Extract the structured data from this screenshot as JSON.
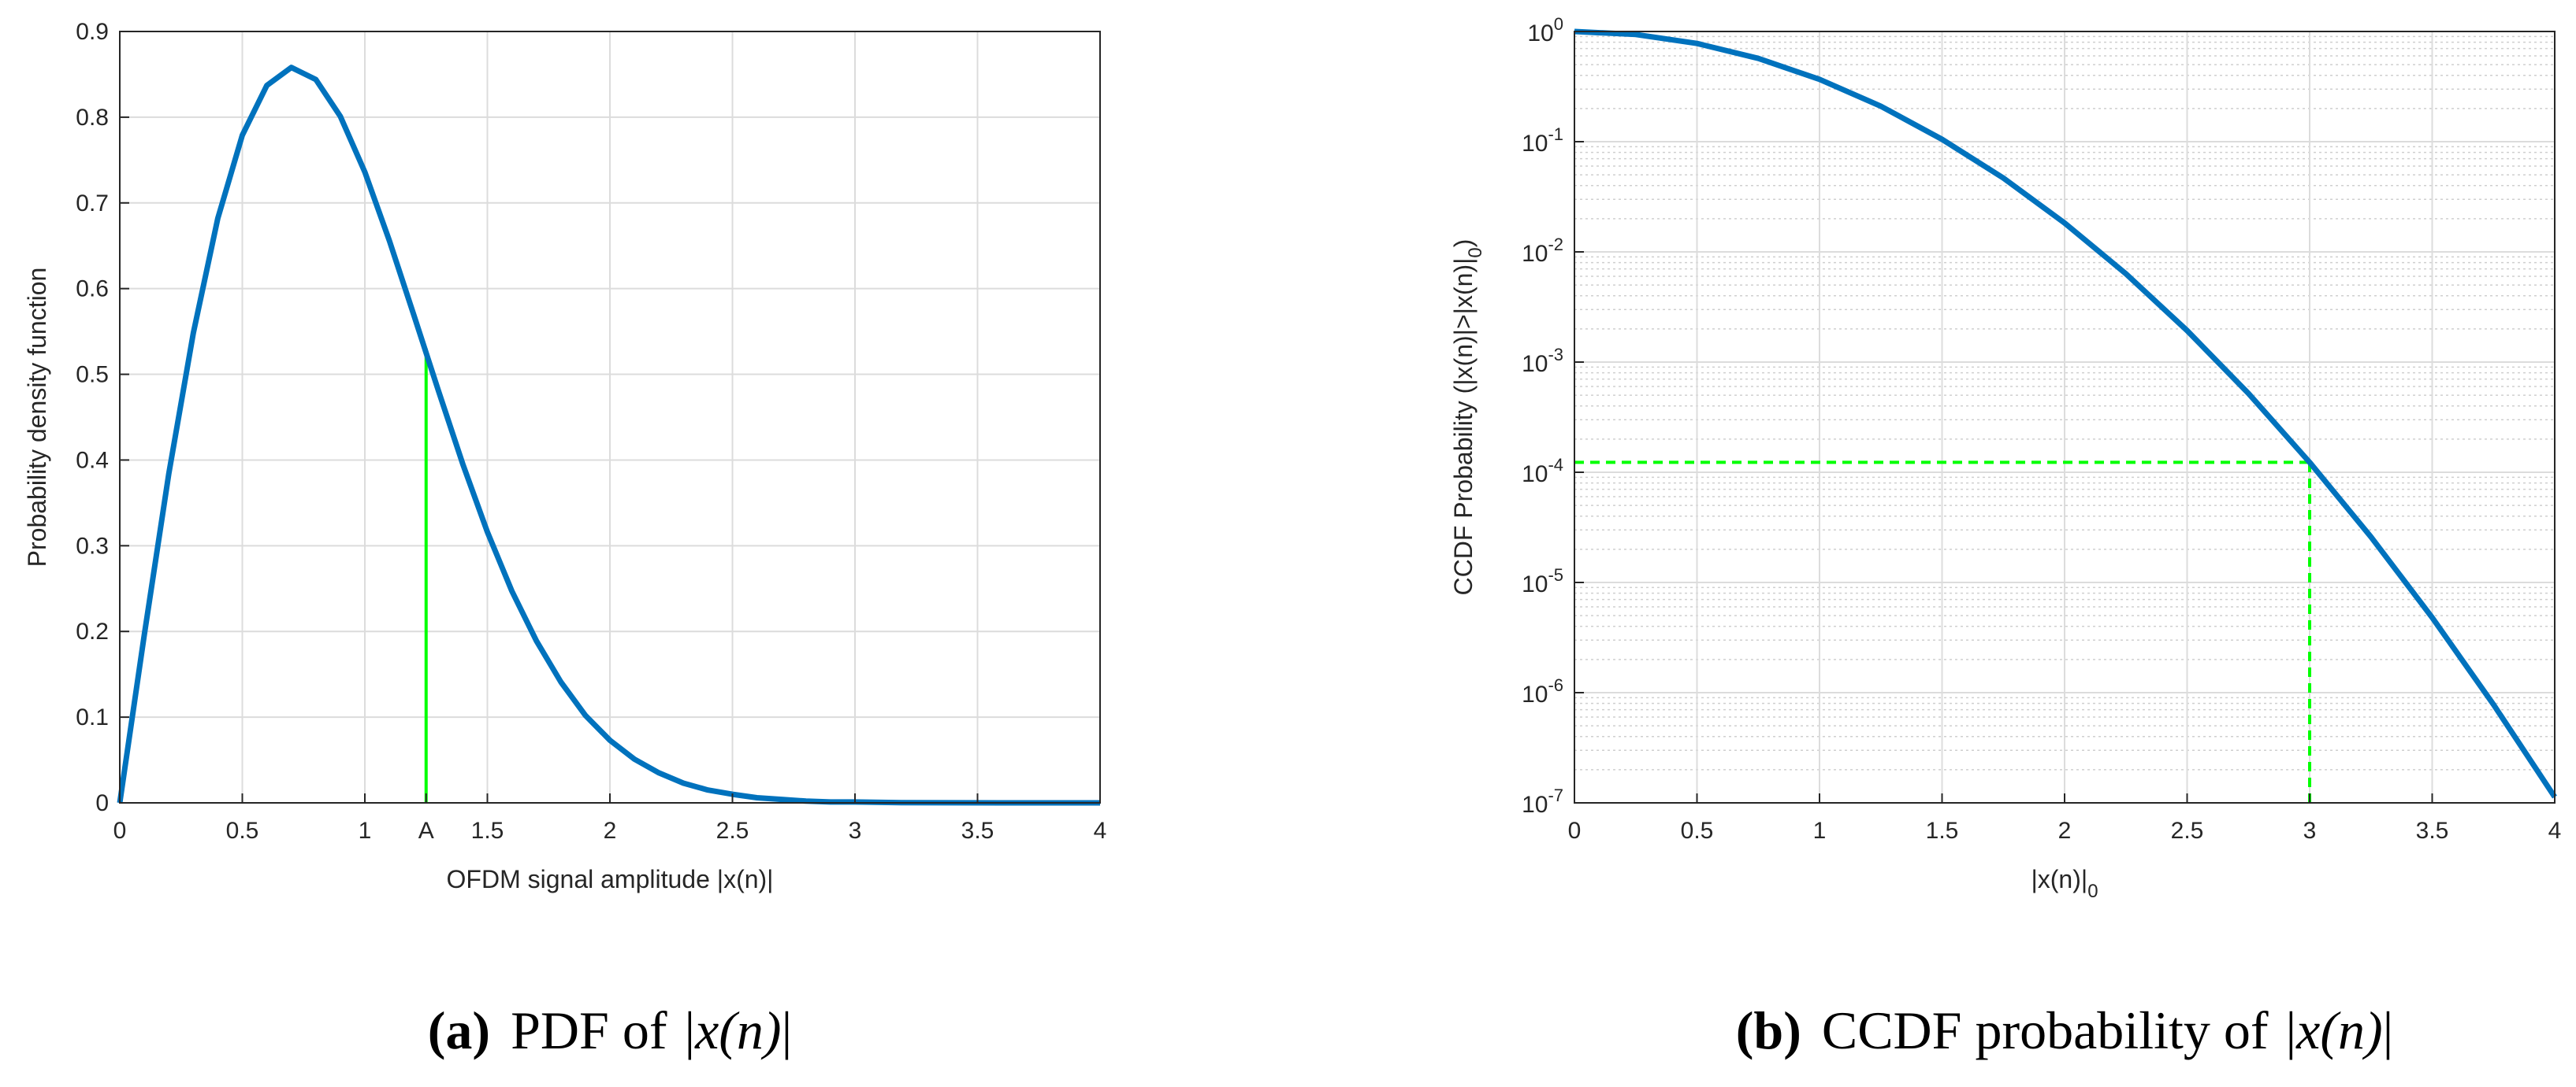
{
  "colors": {
    "curve": "#0072BD",
    "marker": "#00FF00",
    "grid": "#DCDCDC",
    "minor_grid": "#CFCFCF",
    "axis": "#262626"
  },
  "captions": {
    "a": {
      "tag": "(a)",
      "text": "PDF of",
      "math_left": "|",
      "math": "x(n)",
      "math_right": "|"
    },
    "b": {
      "tag": "(b)",
      "text": "CCDF probability of",
      "math_left": "|",
      "math": "x(n)",
      "math_right": "|"
    }
  },
  "chart_data": [
    {
      "type": "line",
      "title": "",
      "xlabel": "OFDM signal amplitude |x(n)|",
      "ylabel": "Probability density function",
      "xlim": [
        0,
        4
      ],
      "ylim": [
        0,
        0.9
      ],
      "xticks": [
        0,
        0.5,
        1,
        1.25,
        1.5,
        2,
        2.5,
        3,
        3.5,
        4
      ],
      "xtick_labels": [
        "0",
        "0.5",
        "1",
        "A",
        "1.5",
        "2",
        "2.5",
        "3",
        "3.5",
        "4"
      ],
      "yticks": [
        0,
        0.1,
        0.2,
        0.3,
        0.4,
        0.5,
        0.6,
        0.7,
        0.8,
        0.9
      ],
      "ytick_labels": [
        "0",
        "0.1",
        "0.2",
        "0.3",
        "0.4",
        "0.5",
        "0.6",
        "0.7",
        "0.8",
        "0.9"
      ],
      "grid": true,
      "series": [
        {
          "name": "PDF",
          "x": [
            0,
            0.1,
            0.2,
            0.3,
            0.4,
            0.5,
            0.6,
            0.7,
            0.8,
            0.9,
            1.0,
            1.1,
            1.2,
            1.3,
            1.4,
            1.5,
            1.6,
            1.7,
            1.8,
            1.9,
            2.0,
            2.1,
            2.2,
            2.3,
            2.4,
            2.5,
            2.6,
            2.7,
            2.8,
            2.9,
            3.0,
            3.2,
            3.4,
            3.6,
            3.8,
            4.0
          ],
          "y": [
            0,
            0.196,
            0.384,
            0.548,
            0.682,
            0.779,
            0.837,
            0.858,
            0.844,
            0.801,
            0.736,
            0.656,
            0.569,
            0.481,
            0.395,
            0.316,
            0.247,
            0.189,
            0.141,
            0.102,
            0.073,
            0.051,
            0.035,
            0.023,
            0.015,
            0.01,
            0.006,
            0.004,
            0.002,
            0.001,
            0.001,
            0.0002,
            0.0001,
            0,
            0,
            0
          ]
        }
      ],
      "annotations": [
        {
          "type": "vline",
          "x": 1.25,
          "y_from": 0,
          "y_to": 0.53,
          "label": "A"
        }
      ]
    },
    {
      "type": "line",
      "title": "",
      "xlabel": "|x(n)|",
      "xlabel_subscript": "0",
      "ylabel": "CCDF Probability (|x(n)|>|x(n)|",
      "ylabel_subscript": "0",
      "ylabel_suffix": ")",
      "xlim": [
        0,
        4
      ],
      "ylim": [
        1e-07,
        1
      ],
      "yscale": "log",
      "xticks": [
        0,
        0.5,
        1,
        1.5,
        2,
        2.5,
        3,
        3.5,
        4
      ],
      "xtick_labels": [
        "0",
        "0.5",
        "1",
        "1.5",
        "2",
        "2.5",
        "3",
        "3.5",
        "4"
      ],
      "ytick_exponents": [
        "0",
        "-1",
        "-2",
        "-3",
        "-4",
        "-5",
        "-6",
        "-7"
      ],
      "ytick_base": "10",
      "grid": true,
      "minor_grid": true,
      "series": [
        {
          "name": "CCDF",
          "x": [
            0,
            0.25,
            0.5,
            0.75,
            1.0,
            1.25,
            1.5,
            1.75,
            2.0,
            2.25,
            2.5,
            2.75,
            3.0,
            3.25,
            3.5,
            3.75,
            4.0
          ],
          "y": [
            1.0,
            0.939,
            0.779,
            0.57,
            0.368,
            0.21,
            0.105,
            0.0468,
            0.0183,
            0.00633,
            0.00193,
            0.00052,
            0.000123,
            2.59e-05,
            4.8e-06,
            7.8e-07,
            1.13e-07
          ]
        }
      ],
      "annotations": [
        {
          "type": "hline_dashed",
          "y": 0.000123,
          "x_from": 0,
          "x_to": 3
        },
        {
          "type": "vline_dashed",
          "x": 3,
          "y_from": 1e-07,
          "y_to": 0.000123
        }
      ]
    }
  ]
}
